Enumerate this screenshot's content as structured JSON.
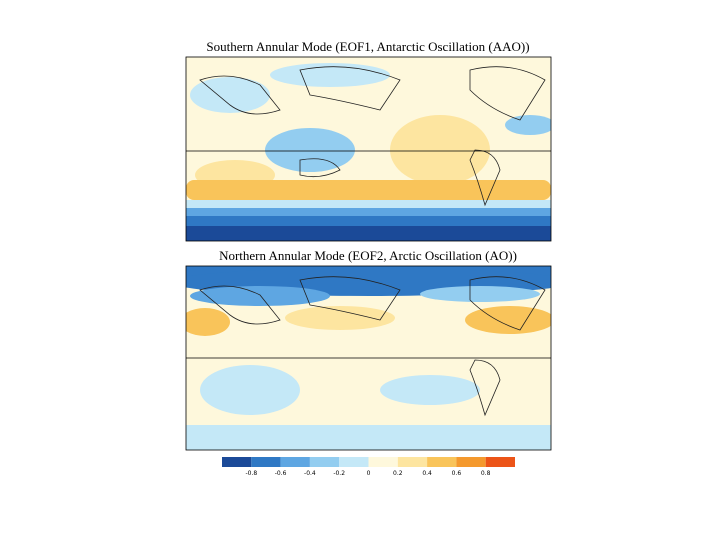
{
  "panels": [
    {
      "title": "Southern Annular Mode (EOF1, Antarctic Oscillation (AAO))"
    },
    {
      "title": "Northern Annular Mode (EOF2, Arctic Oscillation (AO))"
    }
  ],
  "colorbar": {
    "colors": [
      "#1b4a98",
      "#2f78c4",
      "#5ea6e2",
      "#93cdf0",
      "#c4e8f7",
      "#fef8dc",
      "#fde5a0",
      "#f9c45a",
      "#f4992e",
      "#ec5418"
    ],
    "ticks": [
      -0.8,
      -0.6,
      -0.4,
      -0.2,
      0,
      0.2,
      0.4,
      0.6,
      0.8
    ]
  }
}
